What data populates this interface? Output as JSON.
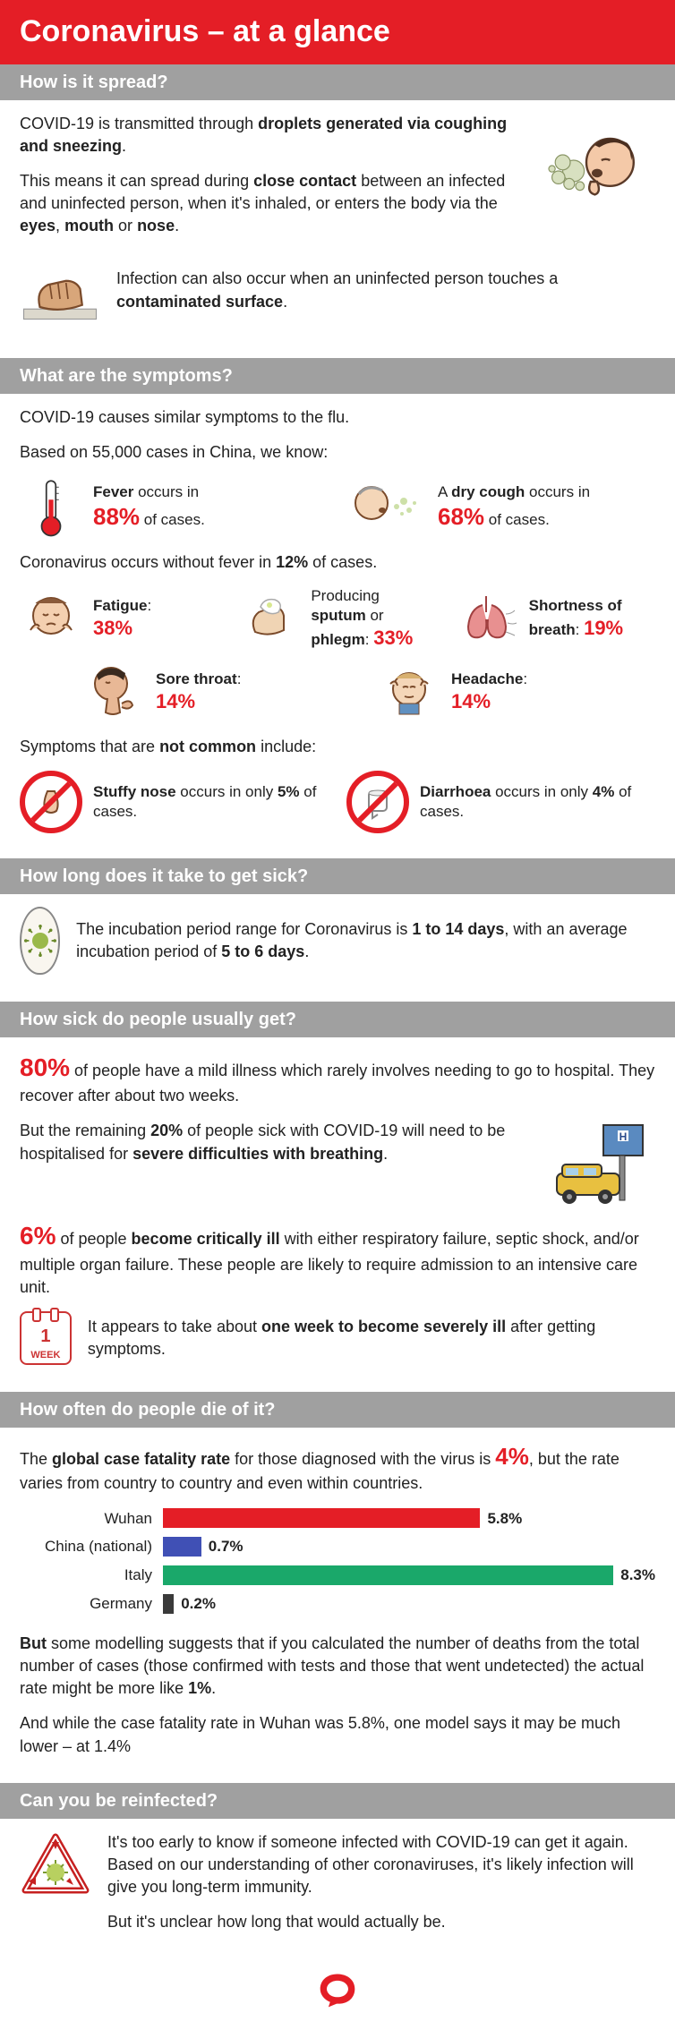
{
  "title": "Coronavirus – at a glance",
  "colors": {
    "accent": "#e41e26",
    "grey_bar": "#a0a0a0",
    "chart_red": "#e41e26",
    "chart_blue": "#4050b5",
    "chart_green": "#1aa86a",
    "chart_dark": "#3a3a3a"
  },
  "sections": {
    "spread": {
      "heading": "How is it spread?",
      "p1_a": "COVID-19 is transmitted through ",
      "p1_b": "droplets generated via coughing and sneezing",
      "p1_c": ".",
      "p2_a": "This means it can spread during ",
      "p2_b": "close contact",
      "p2_c": " between an infected and uninfected person, when it's inhaled, or enters the body via the ",
      "p2_d": "eyes",
      "p2_e": ", ",
      "p2_f": "mouth",
      "p2_g": " or ",
      "p2_h": "nose",
      "p2_i": ".",
      "p3_a": "Infection can also occur when an uninfected person touches a ",
      "p3_b": "contaminated surface",
      "p3_c": "."
    },
    "symptoms": {
      "heading": "What are the symptoms?",
      "intro1": "COVID-19 causes similar symptoms to the flu.",
      "intro2": "Based on 55,000 cases in China, we know:",
      "fever_a": "Fever",
      "fever_b": " occurs in",
      "fever_pct": "88%",
      "fever_c": " of cases.",
      "cough_a": "A ",
      "cough_b": "dry cough",
      "cough_c": " occurs in",
      "cough_pct": "68%",
      "cough_d": " of cases.",
      "nofever_a": "Coronavirus occurs without fever in ",
      "nofever_b": "12%",
      "nofever_c": " of cases.",
      "fatigue_lbl": "Fatigue",
      "fatigue_pct": "38%",
      "sputum_a": "Producing ",
      "sputum_b": "sputum",
      "sputum_c": " or ",
      "sputum_d": "phlegm",
      "sputum_pct": "33%",
      "breath_a": "Shortness of breath",
      "breath_pct": "19%",
      "throat_a": "Sore throat",
      "throat_pct": "14%",
      "headache_a": "Headache",
      "headache_pct": "14%",
      "notcommon_a": "Symptoms that are ",
      "notcommon_b": "not common",
      "notcommon_c": " include:",
      "stuffy_a": "Stuffy nose",
      "stuffy_b": " occurs in only ",
      "stuffy_c": "5%",
      "stuffy_d": " of cases.",
      "diarr_a": "Diarrhoea",
      "diarr_b": " occurs in only ",
      "diarr_c": "4%",
      "diarr_d": " of cases."
    },
    "incubation": {
      "heading": "How long does it take to get sick?",
      "text_a": "The incubation period range for Coronavirus is ",
      "text_b": "1 to 14 days",
      "text_c": ", with an average incubation period of ",
      "text_d": "5 to 6 days",
      "text_e": "."
    },
    "severity": {
      "heading": "How sick do people usually get?",
      "p1_a": "80%",
      "p1_b": " of people have a mild illness which rarely involves needing to go to hospital. They recover after about two weeks.",
      "p2_a": "But the remaining ",
      "p2_b": "20%",
      "p2_c": " of people sick with COVID-19 will need to be hospitalised for ",
      "p2_d": "severe difficulties with breathing",
      "p2_e": ".",
      "p3_a": "6%",
      "p3_b": " of people ",
      "p3_c": "become critically ill",
      "p3_d": " with either respiratory failure, septic shock, and/or multiple organ failure. These people are likely to require admission to an intensive care unit.",
      "p4_a": "It appears to take about ",
      "p4_b": "one week to become severely ill",
      "p4_c": " after getting symptoms.",
      "cal_num": "1",
      "cal_wk": "WEEK"
    },
    "fatality": {
      "heading": "How often do people die of it?",
      "intro_a": "The ",
      "intro_b": "global case fatality rate",
      "intro_c": " for those diagnosed with the virus is ",
      "intro_d": "4%",
      "intro_e": ", but the rate varies from country to country and even within countries.",
      "chart": {
        "max": 9.0,
        "bars": [
          {
            "label": "Wuhan",
            "value": 5.8,
            "display": "5.8%",
            "color": "#e41e26"
          },
          {
            "label": "China (national)",
            "value": 0.7,
            "display": "0.7%",
            "color": "#4050b5"
          },
          {
            "label": "Italy",
            "value": 8.3,
            "display": "8.3%",
            "color": "#1aa86a"
          },
          {
            "label": "Germany",
            "value": 0.2,
            "display": "0.2%",
            "color": "#3a3a3a"
          }
        ]
      },
      "p2_a": "But",
      "p2_b": " some modelling suggests that if you calculated the number of deaths from the total number of cases (those confirmed with tests and those that went undetected) the actual rate might be more like ",
      "p2_c": "1%",
      "p2_d": ".",
      "p3": "And while the case fatality rate in Wuhan was 5.8%, one model says it may be much lower – at 1.4%"
    },
    "reinfect": {
      "heading": "Can you be reinfected?",
      "p1": "It's too early to know if someone infected with COVID-19 can get it again. Based on our understanding of other coronaviruses, it's likely infection will give you long-term immunity.",
      "p2": "But it's unclear how long that would actually be."
    }
  }
}
